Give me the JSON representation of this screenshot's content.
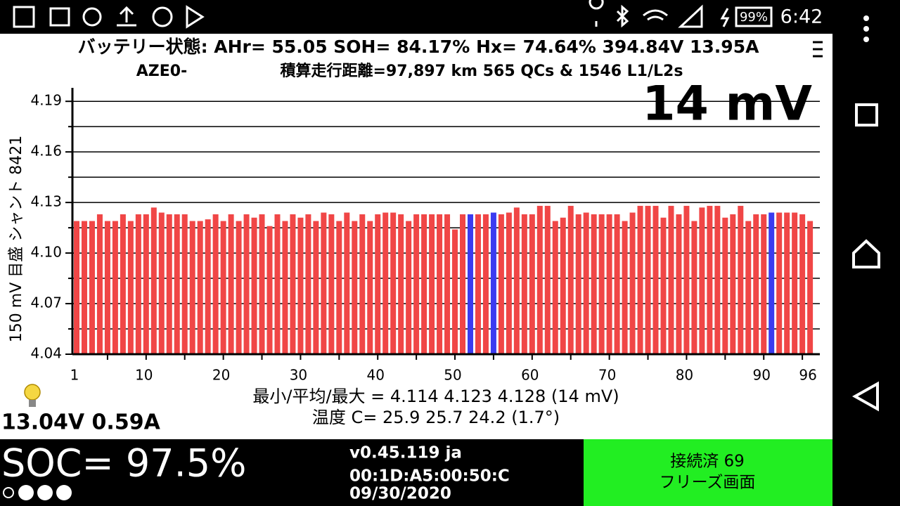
{
  "status_bar": {
    "battery": "99%",
    "time": "6:42"
  },
  "header": {
    "line1": "バッテリー状態:  AHr= 55.05  SOH= 84.17%   Hx= 74.64%   394.84V 13.95A",
    "model": "AZE0-",
    "line2": "積算走行距離=97,897 km  565 QCs & 1546 L1/L2s"
  },
  "chart_data": {
    "type": "bar",
    "y_label": "150 mV 目盛  シャント 8421",
    "annotation": "14 mV",
    "categories": [
      1,
      null,
      null,
      null,
      null,
      null,
      null,
      null,
      null,
      10,
      null,
      null,
      null,
      null,
      null,
      null,
      null,
      null,
      null,
      20,
      null,
      null,
      null,
      null,
      null,
      null,
      null,
      null,
      null,
      30,
      null,
      null,
      null,
      null,
      null,
      null,
      null,
      null,
      null,
      40,
      null,
      null,
      null,
      null,
      null,
      null,
      null,
      null,
      null,
      50,
      null,
      null,
      null,
      null,
      null,
      null,
      null,
      null,
      null,
      60,
      null,
      null,
      null,
      null,
      null,
      null,
      null,
      null,
      null,
      70,
      null,
      null,
      null,
      null,
      null,
      null,
      null,
      null,
      null,
      80,
      null,
      null,
      null,
      null,
      null,
      null,
      null,
      null,
      null,
      90,
      null,
      null,
      null,
      null,
      null,
      96
    ],
    "values": [
      4.119,
      4.119,
      4.119,
      4.123,
      4.119,
      4.119,
      4.123,
      4.119,
      4.123,
      4.123,
      4.127,
      4.124,
      4.123,
      4.123,
      4.123,
      4.119,
      4.119,
      4.12,
      4.123,
      4.119,
      4.123,
      4.119,
      4.123,
      4.121,
      4.123,
      4.116,
      4.123,
      4.119,
      4.123,
      4.121,
      4.123,
      4.119,
      4.124,
      4.123,
      4.119,
      4.124,
      4.119,
      4.123,
      4.119,
      4.123,
      4.124,
      4.124,
      4.123,
      4.119,
      4.123,
      4.123,
      4.123,
      4.123,
      4.123,
      4.114,
      4.123,
      4.123,
      4.123,
      4.123,
      4.124,
      4.123,
      4.124,
      4.127,
      4.123,
      4.123,
      4.128,
      4.128,
      4.119,
      4.121,
      4.128,
      4.123,
      4.124,
      4.123,
      4.123,
      4.123,
      4.123,
      4.119,
      4.124,
      4.128,
      4.128,
      4.128,
      4.121,
      4.128,
      4.123,
      4.128,
      4.119,
      4.127,
      4.128,
      4.128,
      4.121,
      4.123,
      4.128,
      4.119,
      4.123,
      4.123,
      4.124,
      4.124,
      4.124,
      4.124,
      4.123,
      4.119
    ],
    "color": "#f04646",
    "shunt_color": "#3b3bf0",
    "shunt_cells": [
      52,
      55,
      91
    ],
    "ylim": [
      4.04,
      4.198
    ],
    "yticks": [
      {
        "value": 4.04,
        "label": "4.04"
      },
      {
        "value": 4.07,
        "label": "4.07"
      },
      {
        "value": 4.1,
        "label": "4.10"
      },
      {
        "value": 4.13,
        "label": "4.13"
      },
      {
        "value": 4.16,
        "label": "4.16"
      },
      {
        "value": 4.19,
        "label": "4.19"
      }
    ],
    "minor_yticks": [
      4.055,
      4.085,
      4.115,
      4.145,
      4.175
    ],
    "grid": true
  },
  "stats": {
    "voltage": "最小/平均/最大 = 4.114 4.123 4.128  (14 mV)",
    "temperature": "温度 C= 25.9  25.7  24.2  (1.7°)"
  },
  "aux_battery": "13.04V 0.59A",
  "footer": {
    "soc": "SOC= 97.5%",
    "version": "v0.45.119 ja",
    "mac": "00:1D:A5:00:50:C",
    "date": "09/30/2020",
    "status": "接続済 69",
    "freeze": "フリーズ画面"
  }
}
